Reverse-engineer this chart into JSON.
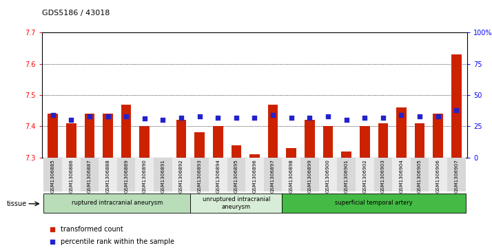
{
  "title": "GDS5186 / 43018",
  "samples": [
    "GSM1306885",
    "GSM1306886",
    "GSM1306887",
    "GSM1306888",
    "GSM1306889",
    "GSM1306890",
    "GSM1306891",
    "GSM1306892",
    "GSM1306893",
    "GSM1306894",
    "GSM1306895",
    "GSM1306896",
    "GSM1306897",
    "GSM1306898",
    "GSM1306899",
    "GSM1306900",
    "GSM1306901",
    "GSM1306902",
    "GSM1306903",
    "GSM1306904",
    "GSM1306905",
    "GSM1306906",
    "GSM1306907"
  ],
  "red_values": [
    7.44,
    7.41,
    7.44,
    7.44,
    7.47,
    7.4,
    7.3,
    7.42,
    7.38,
    7.4,
    7.34,
    7.31,
    7.47,
    7.33,
    7.42,
    7.4,
    7.32,
    7.4,
    7.41,
    7.46,
    7.41,
    7.44,
    7.63
  ],
  "blue_values": [
    34,
    30,
    33,
    33,
    33,
    31,
    30,
    32,
    33,
    32,
    32,
    32,
    34,
    32,
    32,
    33,
    30,
    32,
    32,
    34,
    33,
    33,
    38
  ],
  "ylim_left": [
    7.3,
    7.7
  ],
  "ylim_right": [
    0,
    100
  ],
  "yticks_left": [
    7.3,
    7.4,
    7.5,
    7.6,
    7.7
  ],
  "yticks_right": [
    0,
    25,
    50,
    75,
    100
  ],
  "ytick_labels_right": [
    "0",
    "25",
    "50",
    "75",
    "100%"
  ],
  "grid_lines": [
    7.4,
    7.5,
    7.6
  ],
  "bar_color": "#cc2200",
  "dot_color": "#2222cc",
  "bar_bottom": 7.3,
  "groups": [
    {
      "label": "ruptured intracranial aneurysm",
      "start": 0,
      "end": 8,
      "color": "#b8ddb8"
    },
    {
      "label": "unruptured intracranial\naneurysm",
      "start": 8,
      "end": 13,
      "color": "#d8edd8"
    },
    {
      "label": "superficial temporal artery",
      "start": 13,
      "end": 23,
      "color": "#44bb44"
    }
  ],
  "tissue_label": "tissue",
  "legend_red": "transformed count",
  "legend_blue": "percentile rank within the sample",
  "plot_bg": "#ffffff"
}
